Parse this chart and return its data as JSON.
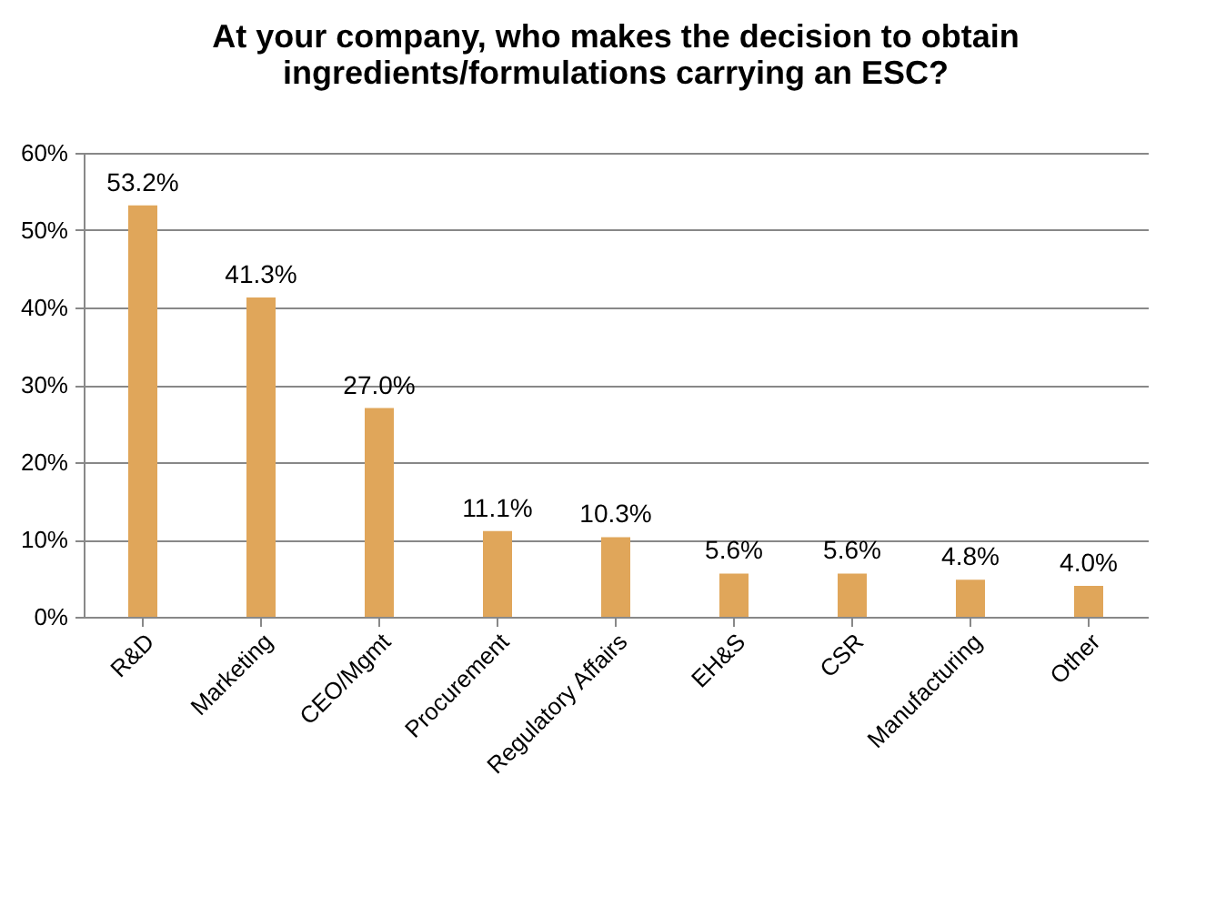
{
  "chart_data": {
    "type": "bar",
    "title": [
      "At your company, who makes the decision to obtain",
      "ingredients/formulations carrying an ESC?"
    ],
    "categories": [
      "R&D",
      "Marketing",
      "CEO/Mgmt",
      "Procurement",
      "Regulatory Affairs",
      "EH&S",
      "CSR",
      "Manufacturing",
      "Other"
    ],
    "values": [
      53.2,
      41.3,
      27.0,
      11.1,
      10.3,
      5.6,
      5.6,
      4.8,
      4.0
    ],
    "value_labels": [
      "53.2%",
      "41.3%",
      "27.0%",
      "11.1%",
      "10.3%",
      "5.6%",
      "5.6%",
      "4.8%",
      "4.0%"
    ],
    "color": "#e0a65a",
    "ylim": [
      0,
      60
    ],
    "yticks": [
      {
        "value": 0,
        "label": "0%"
      },
      {
        "value": 10,
        "label": "10%"
      },
      {
        "value": 20,
        "label": "20%"
      },
      {
        "value": 30,
        "label": "30%"
      },
      {
        "value": 40,
        "label": "40%"
      },
      {
        "value": 50,
        "label": "50%"
      },
      {
        "value": 60,
        "label": "60%"
      }
    ],
    "grid": "y"
  }
}
